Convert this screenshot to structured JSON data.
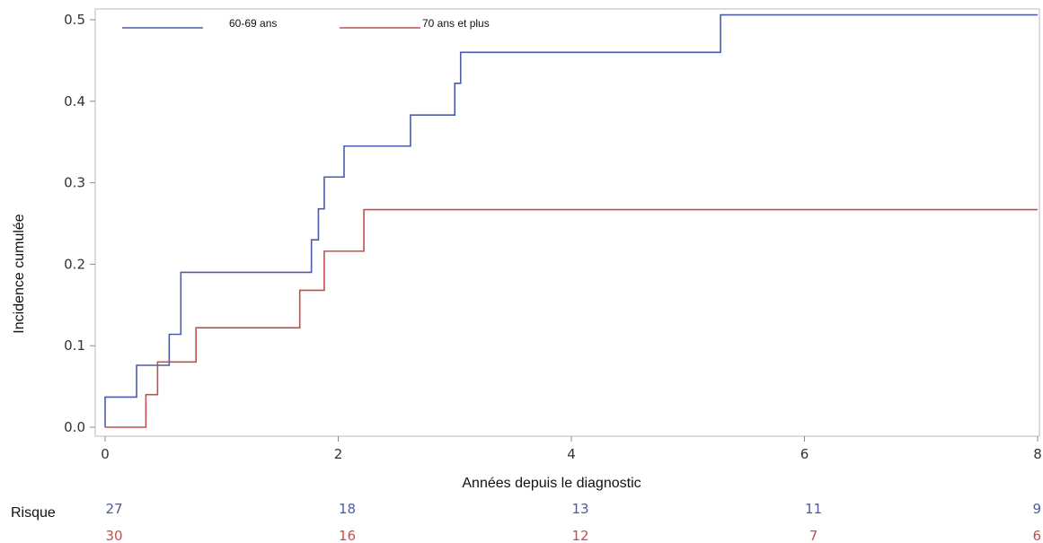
{
  "chart_data": {
    "type": "line",
    "subtype": "step",
    "xlabel": "Années depuis le diagnostic",
    "ylabel": "Incidence cumulée",
    "xlim": [
      0,
      8
    ],
    "ylim": [
      0,
      0.5
    ],
    "x_ticks": [
      0,
      2,
      4,
      6,
      8
    ],
    "y_ticks": [
      "0.0",
      "0.1",
      "0.2",
      "0.3",
      "0.4",
      "0.5"
    ],
    "grid": false,
    "legend_position": "top",
    "series": [
      {
        "name": "60-69 ans",
        "color": "#4a5ba8",
        "x": [
          0,
          0.27,
          0.53,
          0.55,
          0.65,
          1.77,
          1.83,
          1.88,
          2.05,
          2.62,
          3.0,
          3.05,
          5.28,
          8.0
        ],
        "y": [
          0.037,
          0.076,
          0.076,
          0.114,
          0.19,
          0.23,
          0.268,
          0.307,
          0.345,
          0.383,
          0.422,
          0.46,
          0.506,
          0.506
        ]
      },
      {
        "name": "70 ans et plus",
        "color": "#c0504d",
        "x": [
          0,
          0.35,
          0.45,
          0.78,
          1.67,
          1.88,
          2.22,
          8.0
        ],
        "y": [
          0.0,
          0.04,
          0.08,
          0.122,
          0.168,
          0.216,
          0.267,
          0.267
        ]
      }
    ],
    "risk_table": {
      "label": "Risque",
      "x": [
        0,
        2,
        4,
        6,
        8
      ],
      "rows": [
        {
          "series": "60-69 ans",
          "color": "#4a5ba8",
          "values": [
            "27",
            "18",
            "13",
            "11",
            "9"
          ]
        },
        {
          "series": "70 ans et plus",
          "color": "#c0504d",
          "values": [
            "30",
            "16",
            "12",
            "7",
            "6"
          ]
        }
      ]
    }
  }
}
